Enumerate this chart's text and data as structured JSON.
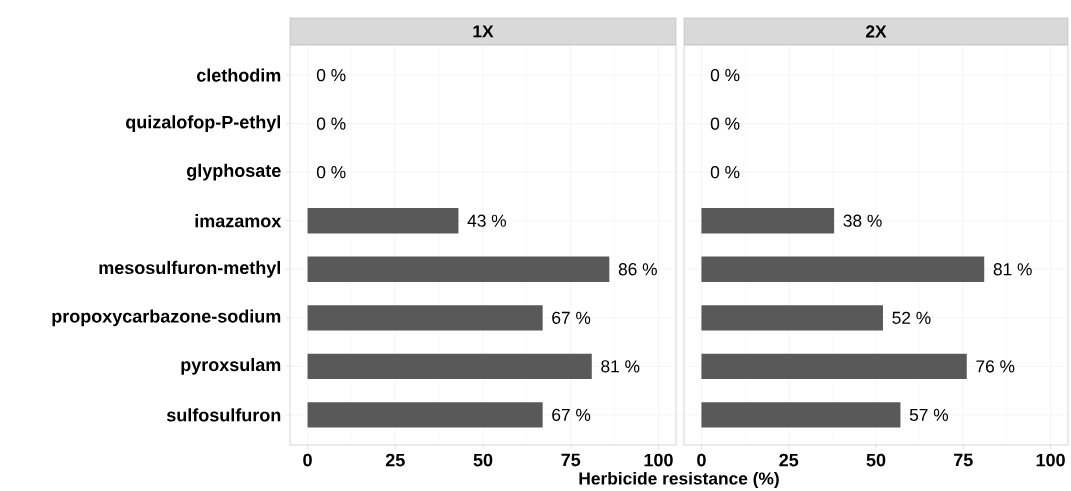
{
  "chart_data": [
    {
      "type": "bar",
      "orientation": "horizontal",
      "title": "1X",
      "xlabel": "Herbicide resistance (%)",
      "categories": [
        "clethodim",
        "quizalofop-P-ethyl",
        "glyphosate",
        "imazamox",
        "mesosulfuron-methyl",
        "propoxycarbazone-sodium",
        "pyroxsulam",
        "sulfosulfuron"
      ],
      "values": [
        0,
        0,
        0,
        43,
        86,
        67,
        81,
        67
      ],
      "value_labels": [
        "0 %",
        "0 %",
        "0 %",
        "43 %",
        "86 %",
        "67 %",
        "81 %",
        "67 %"
      ],
      "color": "#595959",
      "xlim": [
        -5,
        105
      ],
      "xticks": [
        0,
        25,
        50,
        75,
        100
      ],
      "grid": true
    },
    {
      "type": "bar",
      "orientation": "horizontal",
      "title": "2X",
      "categories": [
        null,
        null,
        null,
        null,
        null,
        null,
        null,
        null
      ],
      "values": [
        0,
        0,
        0,
        38,
        81,
        52,
        76,
        57
      ],
      "value_labels": [
        "0 %",
        "0 %",
        "0 %",
        "38 %",
        "81 %",
        "52 %",
        "76 %",
        "57 %"
      ],
      "color": "#595959",
      "xlim": [
        -5,
        105
      ],
      "xticks": [
        0,
        25,
        50,
        75,
        100
      ],
      "grid": true,
      "tick_labels": "x"
    }
  ]
}
